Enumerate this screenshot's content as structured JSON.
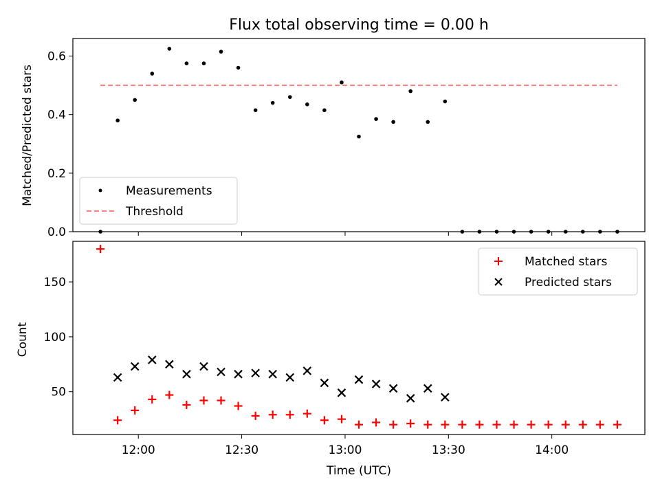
{
  "chart_data": [
    {
      "type": "scatter",
      "title": "Flux total observing time = 0.00 h",
      "ylabel": "Matched/Predicted stars",
      "xlabel": "",
      "xlim": [
        "11:41",
        "14:27"
      ],
      "ylim": [
        0,
        0.66
      ],
      "yticks": [
        0.0,
        0.2,
        0.4,
        0.6
      ],
      "ytick_labels": [
        "0.0",
        "0.2",
        "0.4",
        "0.6"
      ],
      "legend_position": "lower-left",
      "series": [
        {
          "name": "Measurements",
          "kind": "scatter",
          "color": "#000000",
          "x": [
            "11:49",
            "11:54",
            "11:59",
            "12:04",
            "12:09",
            "12:14",
            "12:19",
            "12:24",
            "12:29",
            "12:34",
            "12:39",
            "12:44",
            "12:49",
            "12:54",
            "12:59",
            "13:04",
            "13:09",
            "13:14",
            "13:19",
            "13:24",
            "13:29",
            "13:34",
            "13:39",
            "13:44",
            "13:49",
            "13:54",
            "13:59",
            "14:04",
            "14:09",
            "14:14",
            "14:19"
          ],
          "y": [
            0.0,
            0.38,
            0.45,
            0.54,
            0.625,
            0.575,
            0.575,
            0.615,
            0.56,
            0.415,
            0.44,
            0.46,
            0.435,
            0.415,
            0.51,
            0.325,
            0.385,
            0.375,
            0.48,
            0.375,
            0.445,
            0.0,
            0.0,
            0.0,
            0.0,
            0.0,
            0.0,
            0.0,
            0.0,
            0.0,
            0.0
          ]
        },
        {
          "name": "Threshold",
          "kind": "line",
          "style": "dashed",
          "color": "#ff7f7f",
          "x": [
            "11:49",
            "14:19"
          ],
          "y": [
            0.5,
            0.5
          ]
        }
      ]
    },
    {
      "type": "scatter",
      "title": "",
      "ylabel": "Count",
      "xlabel": "Time (UTC)",
      "xlim": [
        "11:41",
        "14:27"
      ],
      "ylim": [
        11,
        187
      ],
      "yticks": [
        50,
        100,
        150
      ],
      "ytick_labels": [
        "50",
        "100",
        "150"
      ],
      "xticks": [
        "12:00",
        "12:30",
        "13:00",
        "13:30",
        "14:00"
      ],
      "xtick_labels": [
        "12:00",
        "12:30",
        "13:00",
        "13:30",
        "14:00"
      ],
      "legend_position": "upper-right",
      "series": [
        {
          "name": "Matched stars",
          "marker": "plus",
          "color": "#ff0000",
          "x": [
            "11:49",
            "11:54",
            "11:59",
            "12:04",
            "12:09",
            "12:14",
            "12:19",
            "12:24",
            "12:29",
            "12:34",
            "12:39",
            "12:44",
            "12:49",
            "12:54",
            "12:59",
            "13:04",
            "13:09",
            "13:14",
            "13:19",
            "13:24",
            "13:29",
            "13:34",
            "13:39",
            "13:44",
            "13:49",
            "13:54",
            "13:59",
            "14:04",
            "14:09",
            "14:14",
            "14:19"
          ],
          "y": [
            180,
            24,
            33,
            43,
            47,
            38,
            42,
            42,
            37,
            28,
            29,
            29,
            30,
            24,
            25,
            20,
            22,
            20,
            21,
            20,
            20,
            20,
            20,
            20,
            20,
            20,
            20,
            20,
            20,
            20,
            20
          ]
        },
        {
          "name": "Predicted stars",
          "marker": "x",
          "color": "#000000",
          "x": [
            "11:54",
            "11:59",
            "12:04",
            "12:09",
            "12:14",
            "12:19",
            "12:24",
            "12:29",
            "12:34",
            "12:39",
            "12:44",
            "12:49",
            "12:54",
            "12:59",
            "13:04",
            "13:09",
            "13:14",
            "13:19",
            "13:24",
            "13:29"
          ],
          "y": [
            63,
            73,
            79,
            75,
            66,
            73,
            68,
            66,
            67,
            66,
            63,
            69,
            58,
            49,
            61,
            57,
            53,
            44,
            53,
            45
          ]
        }
      ]
    }
  ]
}
